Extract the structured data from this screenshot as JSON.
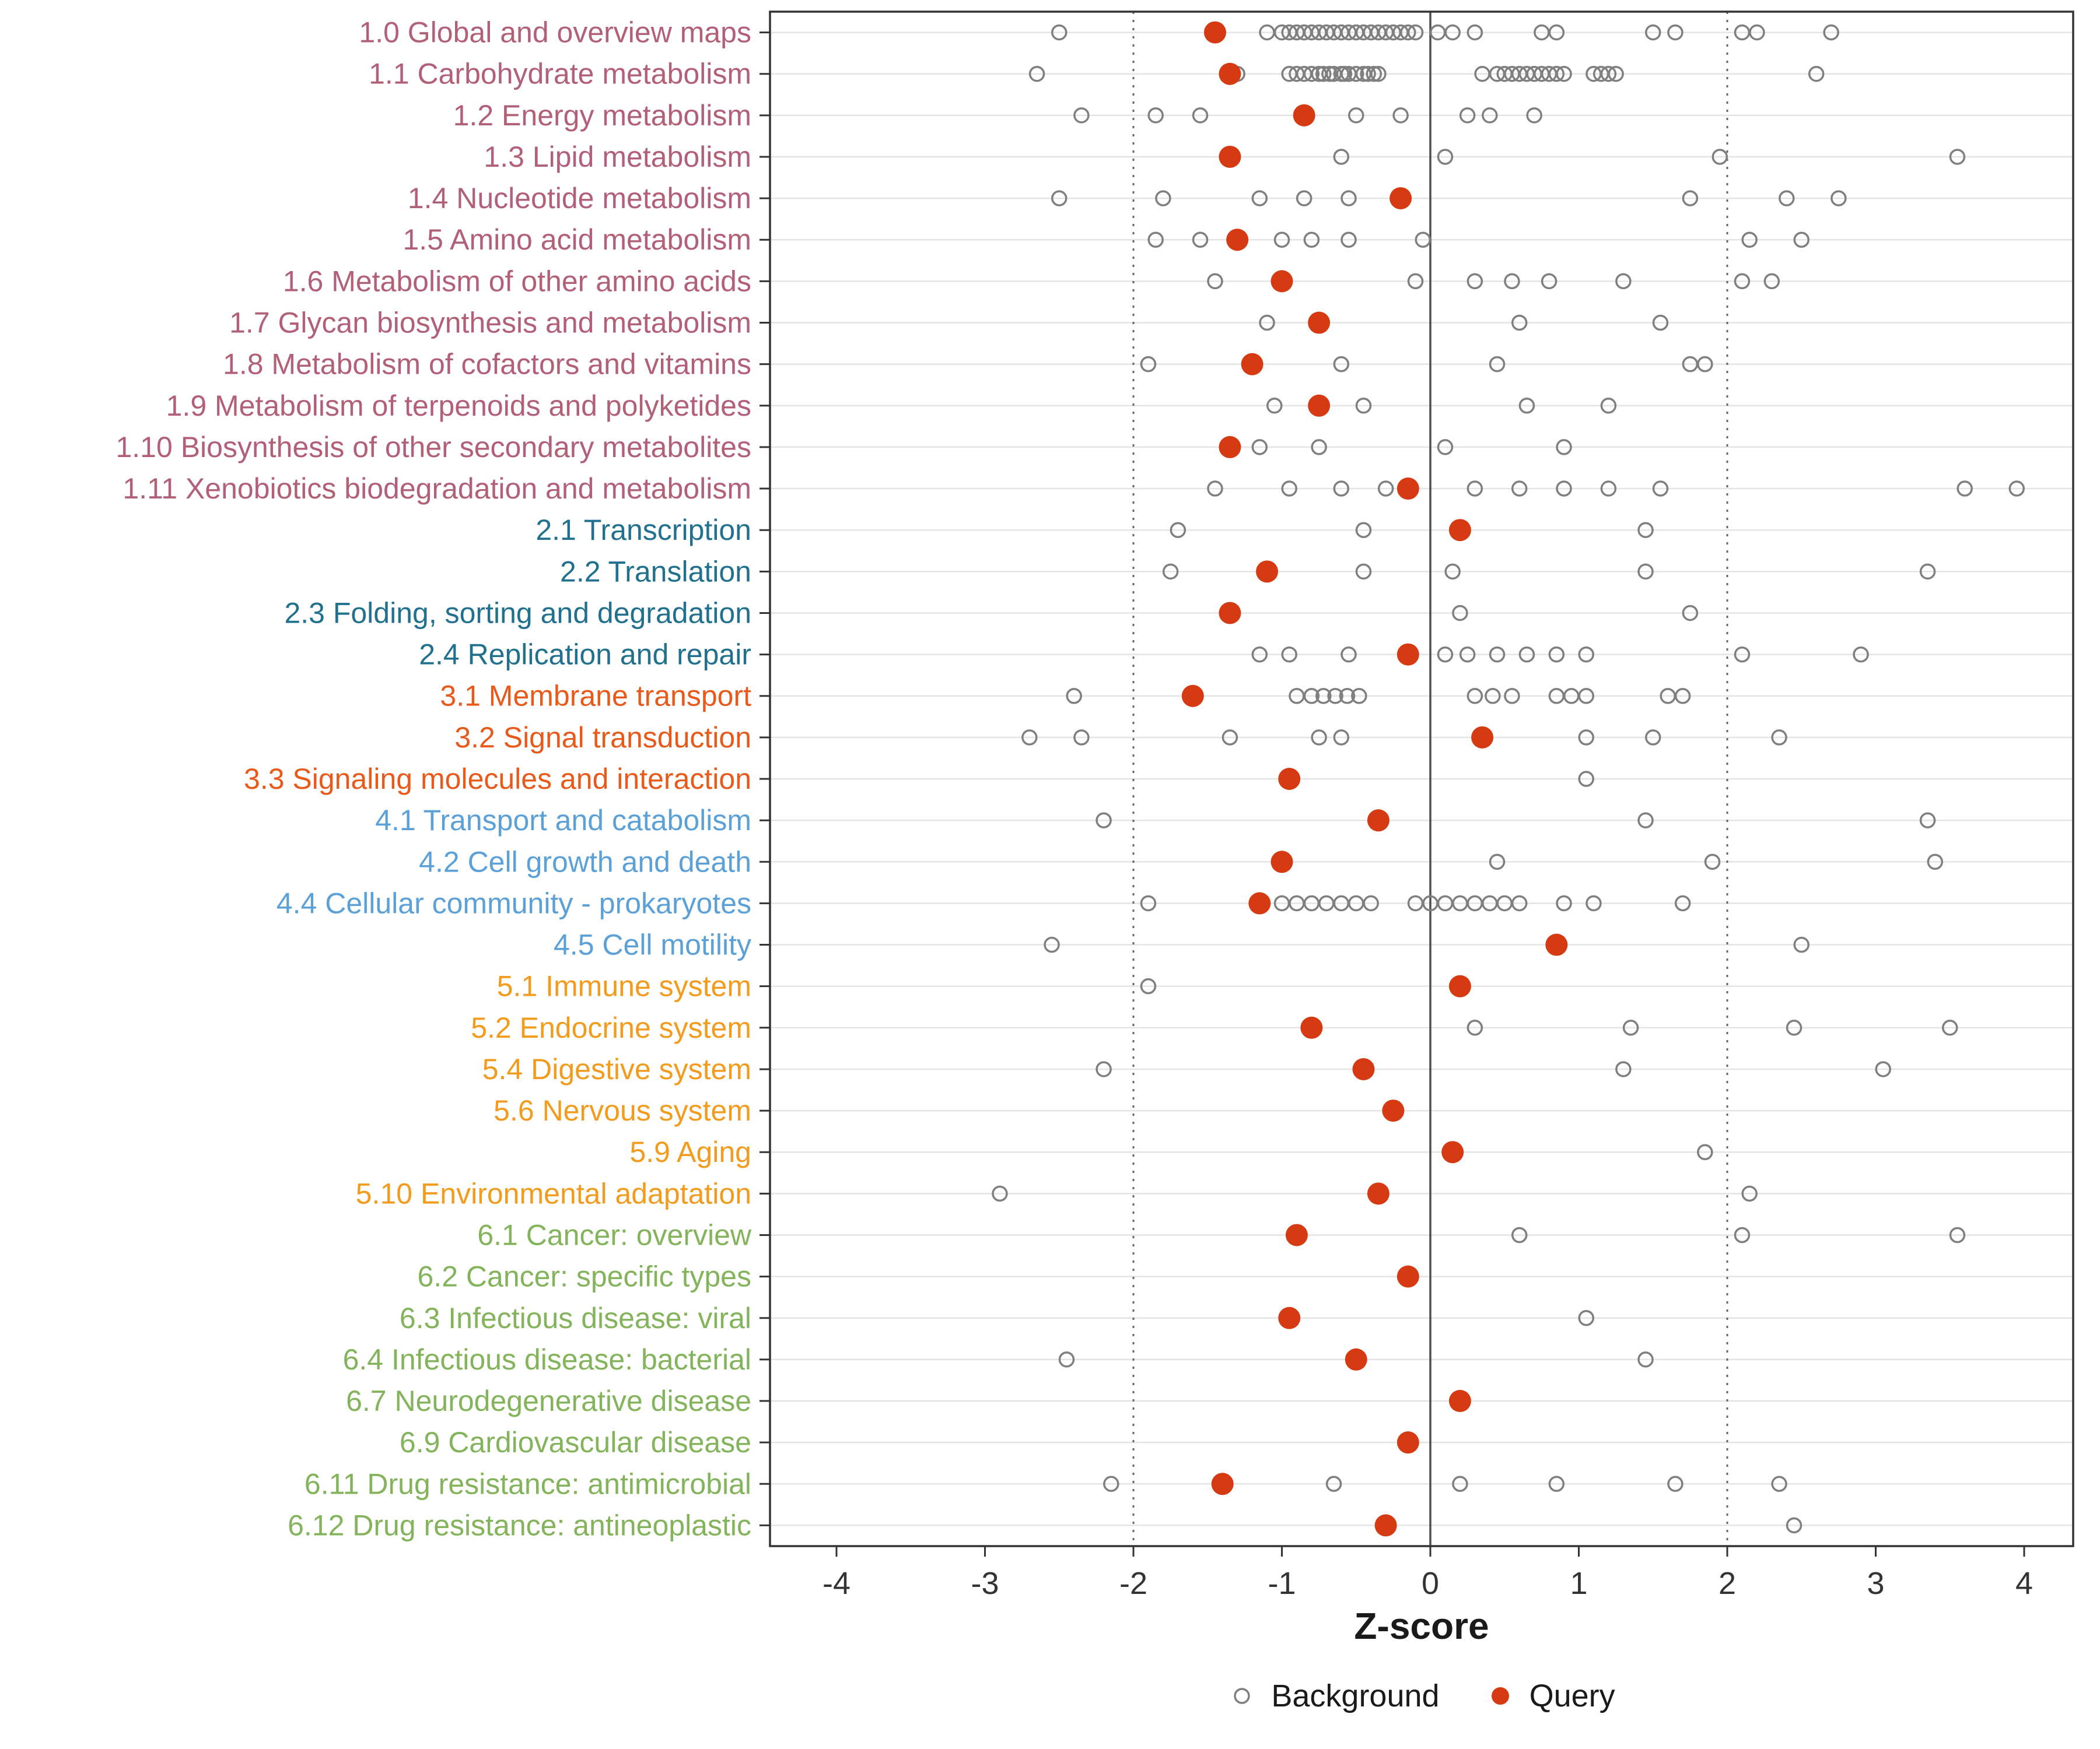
{
  "chart_data": {
    "type": "scatter",
    "variant": "horizontal-strip-dot-plot",
    "title": "",
    "xlabel": "Z-score",
    "xlim": [
      -4.45,
      4.35
    ],
    "x_ticks": [
      -4,
      -3,
      -2,
      -1,
      0,
      1,
      2,
      3,
      4
    ],
    "reference_lines": {
      "solid": [
        0
      ],
      "dotted": [
        -2,
        2
      ]
    },
    "legend": {
      "items": [
        {
          "label": "Background",
          "style": "open"
        },
        {
          "label": "Query",
          "style": "filled"
        }
      ]
    },
    "colors": {
      "query": "#D63A12",
      "background_stroke": "#7F7F7F",
      "grid": "#E4E4E4",
      "axis_text": "#333333",
      "panel_border": "#333333",
      "zero_line": "#4D4D4D",
      "dotted_line": "#666666",
      "groups": {
        "1": "#B25F78",
        "2": "#21708E",
        "3": "#E8591A",
        "4": "#5BA1D8",
        "5": "#F39B1D",
        "6": "#83B35A"
      }
    },
    "rows": [
      {
        "label": "1.0 Global and overview maps",
        "group": "1",
        "query": -1.45,
        "background": [
          -2.5,
          -1.1,
          -1.0,
          -0.95,
          -0.9,
          -0.85,
          -0.8,
          -0.75,
          -0.7,
          -0.65,
          -0.6,
          -0.55,
          -0.5,
          -0.45,
          -0.4,
          -0.35,
          -0.3,
          -0.25,
          -0.2,
          -0.15,
          -0.1,
          0.05,
          0.15,
          0.3,
          0.75,
          0.85,
          1.5,
          1.65,
          2.1,
          2.2,
          2.7
        ]
      },
      {
        "label": "1.1 Carbohydrate metabolism",
        "group": "1",
        "query": -1.35,
        "background": [
          -2.65,
          -1.3,
          -0.95,
          -0.9,
          -0.85,
          -0.8,
          -0.75,
          -0.72,
          -0.68,
          -0.65,
          -0.6,
          -0.58,
          -0.55,
          -0.5,
          -0.45,
          -0.42,
          -0.38,
          -0.35,
          0.35,
          0.45,
          0.5,
          0.55,
          0.6,
          0.65,
          0.7,
          0.75,
          0.8,
          0.85,
          0.9,
          1.1,
          1.15,
          1.2,
          1.25,
          2.6
        ]
      },
      {
        "label": "1.2 Energy metabolism",
        "group": "1",
        "query": -0.85,
        "background": [
          -2.35,
          -1.85,
          -1.55,
          -0.5,
          -0.2,
          0.25,
          0.4,
          0.7
        ]
      },
      {
        "label": "1.3 Lipid metabolism",
        "group": "1",
        "query": -1.35,
        "background": [
          -0.6,
          0.1,
          1.95,
          3.55
        ]
      },
      {
        "label": "1.4 Nucleotide metabolism",
        "group": "1",
        "query": -0.2,
        "background": [
          -2.5,
          -1.8,
          -1.15,
          -0.85,
          -0.55,
          1.75,
          2.4,
          2.75
        ]
      },
      {
        "label": "1.5 Amino acid metabolism",
        "group": "1",
        "query": -1.3,
        "background": [
          -1.85,
          -1.55,
          -1.0,
          -0.8,
          -0.55,
          -0.05,
          2.15,
          2.5
        ]
      },
      {
        "label": "1.6 Metabolism of other amino acids",
        "group": "1",
        "query": -1.0,
        "background": [
          -1.45,
          -0.1,
          0.3,
          0.55,
          0.8,
          1.3,
          2.1,
          2.3
        ]
      },
      {
        "label": "1.7 Glycan biosynthesis and metabolism",
        "group": "1",
        "query": -0.75,
        "background": [
          -1.1,
          0.6,
          1.55
        ]
      },
      {
        "label": "1.8 Metabolism of cofactors and vitamins",
        "group": "1",
        "query": -1.2,
        "background": [
          -1.9,
          -0.6,
          0.45,
          1.75,
          1.85
        ]
      },
      {
        "label": "1.9 Metabolism of terpenoids and polyketides",
        "group": "1",
        "query": -0.75,
        "background": [
          -1.05,
          -0.45,
          0.65,
          1.2
        ]
      },
      {
        "label": "1.10 Biosynthesis of other secondary metabolites",
        "group": "1",
        "query": -1.35,
        "background": [
          -1.15,
          -0.75,
          0.1,
          0.9
        ]
      },
      {
        "label": "1.11 Xenobiotics biodegradation and metabolism",
        "group": "1",
        "query": -0.15,
        "background": [
          -1.45,
          -0.95,
          -0.6,
          -0.3,
          0.3,
          0.6,
          0.9,
          1.2,
          1.55,
          3.6,
          3.95
        ]
      },
      {
        "label": "2.1 Transcription",
        "group": "2",
        "query": 0.2,
        "background": [
          -1.7,
          -0.45,
          1.45
        ]
      },
      {
        "label": "2.2 Translation",
        "group": "2",
        "query": -1.1,
        "background": [
          -1.75,
          -0.45,
          0.15,
          1.45,
          3.35
        ]
      },
      {
        "label": "2.3 Folding, sorting and degradation",
        "group": "2",
        "query": -1.35,
        "background": [
          0.2,
          1.75
        ]
      },
      {
        "label": "2.4 Replication and repair",
        "group": "2",
        "query": -0.15,
        "background": [
          -1.15,
          -0.95,
          -0.55,
          0.1,
          0.25,
          0.45,
          0.65,
          0.85,
          1.05,
          2.1,
          2.9
        ]
      },
      {
        "label": "3.1 Membrane transport",
        "group": "3",
        "query": -1.6,
        "background": [
          -2.4,
          -0.9,
          -0.8,
          -0.72,
          -0.64,
          -0.56,
          -0.48,
          0.3,
          0.42,
          0.55,
          0.85,
          0.95,
          1.05,
          1.6,
          1.7
        ]
      },
      {
        "label": "3.2 Signal transduction",
        "group": "3",
        "query": 0.35,
        "background": [
          -2.7,
          -2.35,
          -1.35,
          -0.75,
          -0.6,
          1.05,
          1.5,
          2.35
        ]
      },
      {
        "label": "3.3 Signaling molecules and interaction",
        "group": "3",
        "query": -0.95,
        "background": [
          1.05
        ]
      },
      {
        "label": "4.1 Transport and catabolism",
        "group": "4",
        "query": -0.35,
        "background": [
          -2.2,
          1.45,
          3.35
        ]
      },
      {
        "label": "4.2 Cell growth and death",
        "group": "4",
        "query": -1.0,
        "background": [
          0.45,
          1.9,
          3.4
        ]
      },
      {
        "label": "4.4 Cellular community - prokaryotes",
        "group": "4",
        "query": -1.15,
        "background": [
          -1.9,
          -1.0,
          -0.9,
          -0.8,
          -0.7,
          -0.6,
          -0.5,
          -0.4,
          -0.1,
          0.0,
          0.1,
          0.2,
          0.3,
          0.4,
          0.5,
          0.6,
          0.9,
          1.1,
          1.7
        ]
      },
      {
        "label": "4.5 Cell motility",
        "group": "4",
        "query": 0.85,
        "background": [
          -2.55,
          2.5
        ]
      },
      {
        "label": "5.1 Immune system",
        "group": "5",
        "query": 0.2,
        "background": [
          -1.9
        ]
      },
      {
        "label": "5.2 Endocrine system",
        "group": "5",
        "query": -0.8,
        "background": [
          0.3,
          1.35,
          2.45,
          3.5
        ]
      },
      {
        "label": "5.4 Digestive system",
        "group": "5",
        "query": -0.45,
        "background": [
          -2.2,
          1.3,
          3.05
        ]
      },
      {
        "label": "5.6 Nervous system",
        "group": "5",
        "query": -0.25,
        "background": []
      },
      {
        "label": "5.9 Aging",
        "group": "5",
        "query": 0.15,
        "background": [
          1.85
        ]
      },
      {
        "label": "5.10 Environmental adaptation",
        "group": "5",
        "query": -0.35,
        "background": [
          -2.9,
          2.15
        ]
      },
      {
        "label": "6.1 Cancer: overview",
        "group": "6",
        "query": -0.9,
        "background": [
          0.6,
          2.1,
          3.55
        ]
      },
      {
        "label": "6.2 Cancer: specific types",
        "group": "6",
        "query": -0.15,
        "background": []
      },
      {
        "label": "6.3 Infectious disease: viral",
        "group": "6",
        "query": -0.95,
        "background": [
          1.05
        ]
      },
      {
        "label": "6.4 Infectious disease: bacterial",
        "group": "6",
        "query": -0.5,
        "background": [
          -2.45,
          1.45
        ]
      },
      {
        "label": "6.7 Neurodegenerative disease",
        "group": "6",
        "query": 0.2,
        "background": []
      },
      {
        "label": "6.9 Cardiovascular disease",
        "group": "6",
        "query": -0.15,
        "background": []
      },
      {
        "label": "6.11 Drug resistance: antimicrobial",
        "group": "6",
        "query": -1.4,
        "background": [
          -2.15,
          -0.65,
          0.2,
          0.85,
          1.65,
          2.35
        ]
      },
      {
        "label": "6.12 Drug resistance: antineoplastic",
        "group": "6",
        "query": -0.3,
        "background": [
          2.45
        ]
      }
    ]
  }
}
